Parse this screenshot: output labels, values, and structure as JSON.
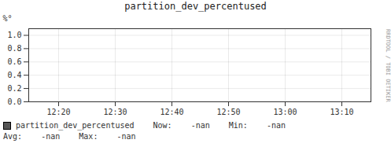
{
  "chart_data": {
    "type": "line",
    "title": "partition_dev_percentused",
    "ylabel": "%°",
    "categories": [
      "12:20",
      "12:30",
      "12:40",
      "12:50",
      "13:00",
      "13:10"
    ],
    "series": [
      {
        "name": "partition_dev_percentused",
        "color": "#555555",
        "values": [
          null,
          null,
          null,
          null,
          null,
          null
        ]
      }
    ],
    "ylim": [
      0.0,
      1.1
    ],
    "yticks": [
      {
        "value": 0.0,
        "label": "0.0"
      },
      0.2,
      0.4,
      0.6,
      0.8,
      {
        "value": 1.0,
        "label": "1.0"
      }
    ],
    "grid": true,
    "legend": "bottom",
    "annotations": [
      "Now:    -nan",
      "Min:    -nan",
      "Avg:    -nan    Max:    -nan",
      "RRDTOOL / TOBI OETIKER"
    ]
  }
}
